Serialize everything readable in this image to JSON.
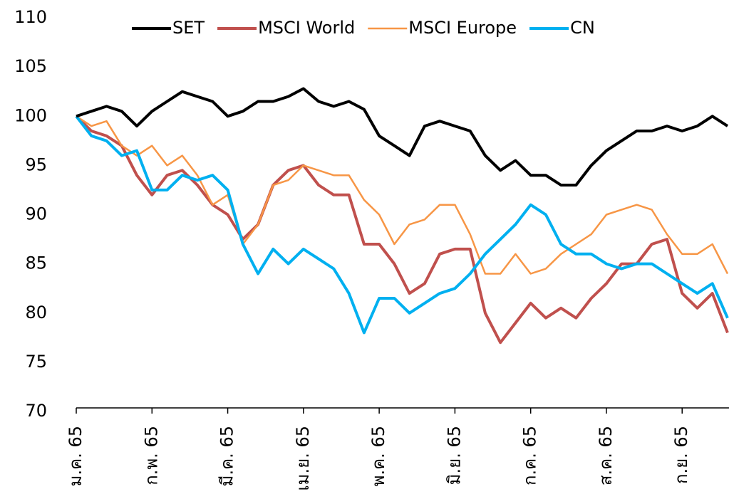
{
  "chart_data": {
    "type": "line",
    "categories": [
      "ม.ค. 65",
      null,
      null,
      null,
      null,
      "ก.พ. 65",
      null,
      null,
      null,
      null,
      "มี.ค. 65",
      null,
      null,
      null,
      null,
      "เม.ย. 65",
      null,
      null,
      null,
      null,
      "พ.ค. 65",
      null,
      null,
      null,
      null,
      "มิ.ย. 65",
      null,
      null,
      null,
      null,
      "ก.ค. 65",
      null,
      null,
      null,
      null,
      "ส.ค. 65",
      null,
      null,
      null,
      null,
      "ก.ย. 65",
      null,
      null,
      null
    ],
    "series": [
      {
        "name": "SET",
        "color": "#000000",
        "values": [
          100,
          100.5,
          101,
          100.5,
          99,
          100.5,
          101.5,
          102.5,
          102,
          101.5,
          100,
          100.5,
          101.5,
          101.5,
          102,
          102.8,
          101.5,
          101,
          101.5,
          100.7,
          98,
          97,
          96,
          99,
          99.5,
          99,
          98.5,
          96,
          94.5,
          95.5,
          94,
          94,
          93,
          93,
          95,
          96.5,
          97.5,
          98.5,
          98.5,
          99,
          98.5,
          99,
          100,
          99
        ]
      },
      {
        "name": "MSCI World",
        "color": "#c0504d",
        "values": [
          100,
          98.5,
          98,
          97,
          94,
          92,
          94,
          94.5,
          93,
          91,
          90,
          87.5,
          89,
          93,
          94.5,
          95,
          93,
          92,
          92,
          87,
          87,
          85,
          82,
          83,
          86,
          86.5,
          86.5,
          80,
          77,
          79,
          81,
          79.5,
          80.5,
          79.5,
          81.5,
          83,
          85,
          85,
          87,
          87.5,
          82,
          80.5,
          82,
          78
        ]
      },
      {
        "name": "MSCI Europe",
        "color": "#f79646",
        "values": [
          100,
          99,
          99.5,
          97,
          96,
          97,
          95,
          96,
          94,
          91,
          92,
          87,
          89,
          93,
          93.5,
          95,
          94.5,
          94,
          94,
          91.5,
          90,
          87,
          89,
          89.5,
          91,
          91,
          88,
          84,
          84,
          86,
          84,
          84.5,
          86,
          87,
          88,
          90,
          90.5,
          91,
          90.5,
          88,
          86,
          86,
          87,
          84
        ]
      },
      {
        "name": "CN",
        "color": "#00b0f0",
        "values": [
          100,
          98,
          97.5,
          96,
          96.5,
          92.5,
          92.5,
          94,
          93.5,
          94,
          92.5,
          87,
          84,
          86.5,
          85,
          86.5,
          85.5,
          84.5,
          82,
          78,
          81.5,
          81.5,
          80,
          81,
          82,
          82.5,
          84,
          86,
          87.5,
          89,
          91,
          90,
          87,
          86,
          86,
          85,
          84.5,
          85,
          85,
          84,
          83,
          82,
          83,
          79.5
        ]
      }
    ],
    "ylim": [
      70,
      110
    ],
    "yticks": [
      70,
      75,
      80,
      85,
      90,
      95,
      100,
      105,
      110
    ],
    "legend": "top",
    "grid": false
  }
}
